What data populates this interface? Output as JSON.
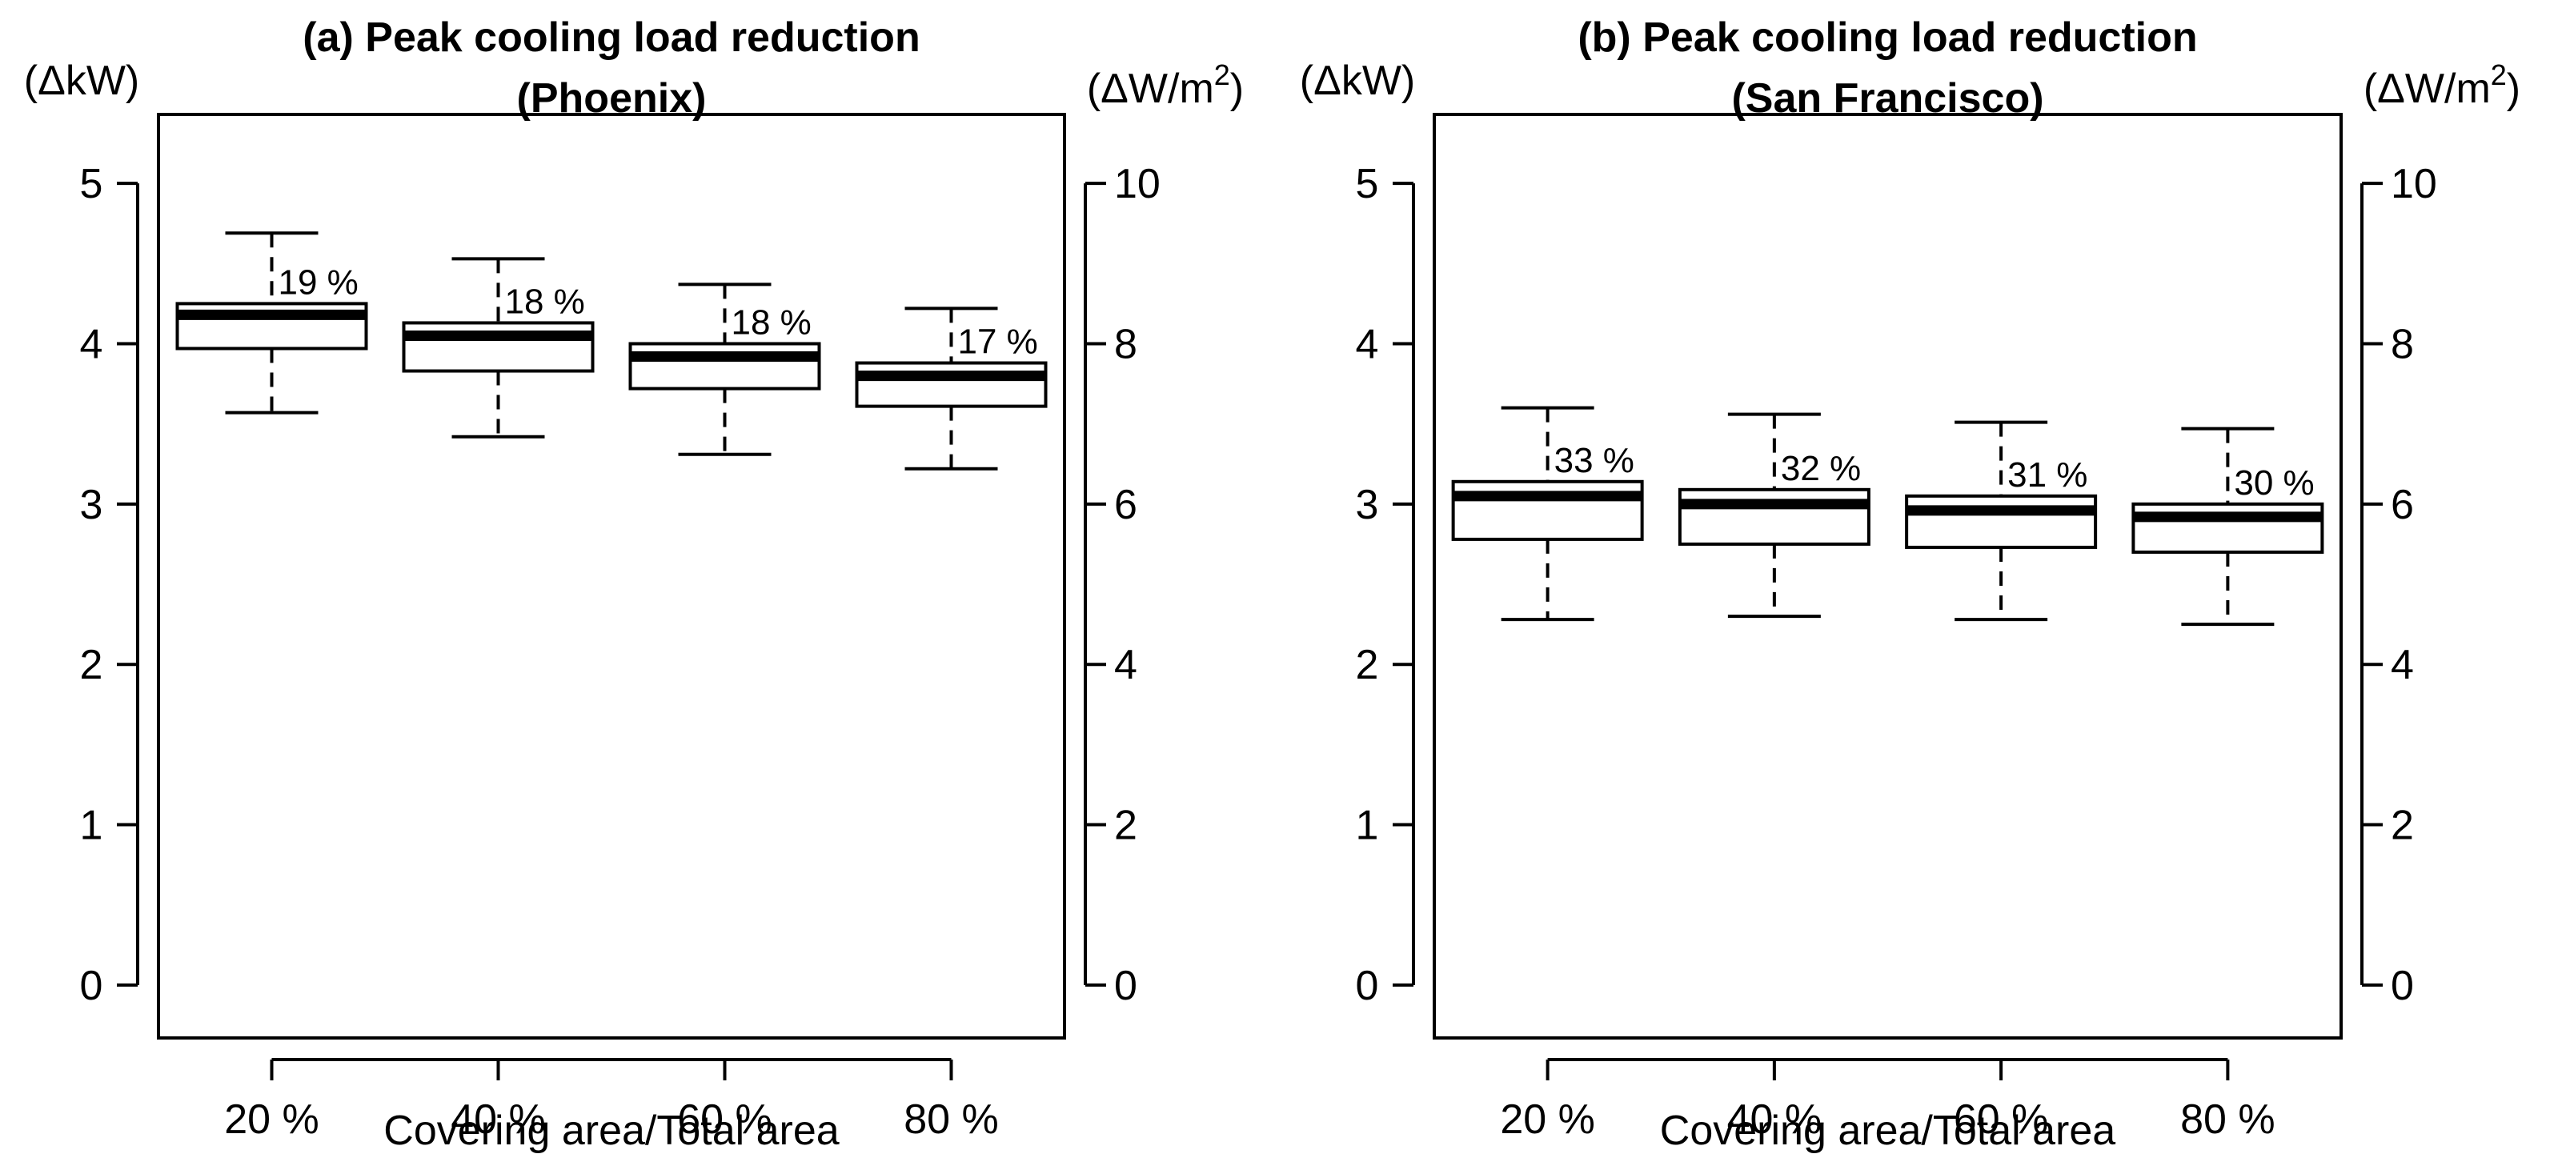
{
  "chart_data": [
    {
      "type": "boxplot",
      "title_line1": "(a) Peak cooling load reduction",
      "title_line2": "(Phoenix)",
      "left_unit": "(ΔkW)",
      "right_unit_base": "(ΔW/m",
      "right_unit_sup": "2",
      "right_unit_close": ")",
      "xlabel": "Covering area/Total area",
      "categories": [
        "20 %",
        "40 %",
        "60 %",
        "80 %"
      ],
      "ylim": [
        0,
        5
      ],
      "yticks_left": [
        "0",
        "1",
        "2",
        "3",
        "4",
        "5"
      ],
      "yticks_right": [
        "0",
        "2",
        "4",
        "6",
        "8",
        "10"
      ],
      "boxes": [
        {
          "whisker_low": 3.57,
          "q1": 3.97,
          "median": 4.18,
          "q3": 4.25,
          "whisker_high": 4.69,
          "label": "19 %"
        },
        {
          "whisker_low": 3.42,
          "q1": 3.83,
          "median": 4.05,
          "q3": 4.13,
          "whisker_high": 4.53,
          "label": "18 %"
        },
        {
          "whisker_low": 3.31,
          "q1": 3.72,
          "median": 3.92,
          "q3": 4.0,
          "whisker_high": 4.37,
          "label": "18 %"
        },
        {
          "whisker_low": 3.22,
          "q1": 3.61,
          "median": 3.8,
          "q3": 3.88,
          "whisker_high": 4.22,
          "label": "17 %"
        }
      ]
    },
    {
      "type": "boxplot",
      "title_line1": "(b) Peak cooling load reduction",
      "title_line2": "(San Francisco)",
      "left_unit": "(ΔkW)",
      "right_unit_base": "(ΔW/m",
      "right_unit_sup": "2",
      "right_unit_close": ")",
      "xlabel": "Covering area/Total area",
      "categories": [
        "20 %",
        "40 %",
        "60 %",
        "80 %"
      ],
      "ylim": [
        0,
        5
      ],
      "yticks_left": [
        "0",
        "1",
        "2",
        "3",
        "4",
        "5"
      ],
      "yticks_right": [
        "0",
        "2",
        "4",
        "6",
        "8",
        "10"
      ],
      "boxes": [
        {
          "whisker_low": 2.28,
          "q1": 2.78,
          "median": 3.05,
          "q3": 3.14,
          "whisker_high": 3.6,
          "label": "33 %"
        },
        {
          "whisker_low": 2.3,
          "q1": 2.75,
          "median": 3.0,
          "q3": 3.09,
          "whisker_high": 3.56,
          "label": "32 %"
        },
        {
          "whisker_low": 2.28,
          "q1": 2.73,
          "median": 2.96,
          "q3": 3.05,
          "whisker_high": 3.51,
          "label": "31 %"
        },
        {
          "whisker_low": 2.25,
          "q1": 2.7,
          "median": 2.92,
          "q3": 3.0,
          "whisker_high": 3.47,
          "label": "30 %"
        }
      ]
    }
  ]
}
